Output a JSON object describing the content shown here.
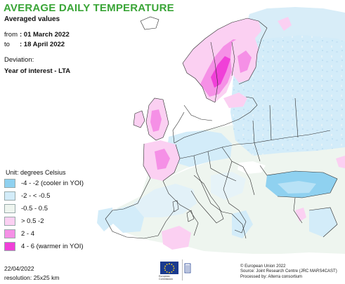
{
  "title": "AVERAGE DAILY TEMPERATURE",
  "subtitle": "Averaged values",
  "period": {
    "from_label": "from",
    "from_value": ": 01 March 2022",
    "to_label": "to",
    "to_value": ": 18 April 2022"
  },
  "deviation": {
    "label": "Deviation:",
    "value": "Year of interest - LTA"
  },
  "legend": {
    "unit": "Unit: degrees Celsius",
    "classes": [
      {
        "label": "-4 - -2 (cooler in YOI)",
        "color": "#8fd1f0"
      },
      {
        "label": "-2 - < -0.5",
        "color": "#d3ecf9"
      },
      {
        "label": "-0.5 - 0.5",
        "color": "#eef5ef"
      },
      {
        "label": "> 0.5 -2",
        "color": "#fbd0f2"
      },
      {
        "label": "2 - 4",
        "color": "#f590e6"
      },
      {
        "label": "4 - 6 (warmer in YOI)",
        "color": "#f040d8"
      }
    ]
  },
  "footer": {
    "date": "22/04/2022",
    "resolution": "resolution: 25x25 km"
  },
  "credits": {
    "line1": "© European Union 2022",
    "line2": "Source: Joint Research Centre (JRC MARS4CAST)",
    "line3": "Processed by: Alterra consortium"
  },
  "logo": {
    "caption_1": "European",
    "caption_2": "Commission"
  }
}
